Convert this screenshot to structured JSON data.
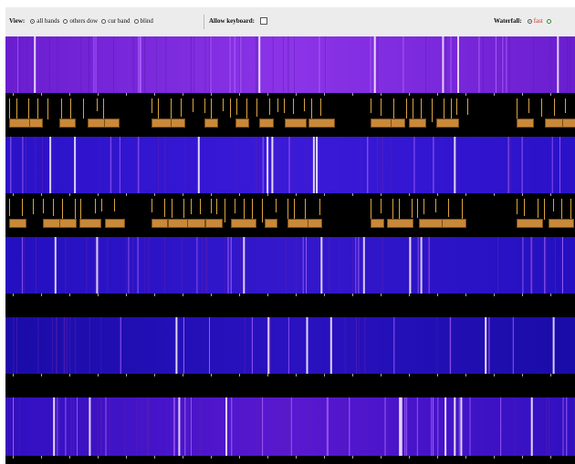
{
  "toolbar": {
    "view_label": "View:",
    "view_options": [
      "all bands",
      "others dow",
      "cur band",
      "blind"
    ],
    "keyboard_label": "Allow keyboard:",
    "waterfall_label": "Waterfall:",
    "waterfall_options": [
      "fast"
    ]
  },
  "colors": {
    "accent": "#d9a441",
    "label_fill": "#c9893a",
    "waterfall_purple": "#7a2ad8",
    "waterfall_blue": "#2410c8",
    "scale_bg": "#000000"
  }
}
